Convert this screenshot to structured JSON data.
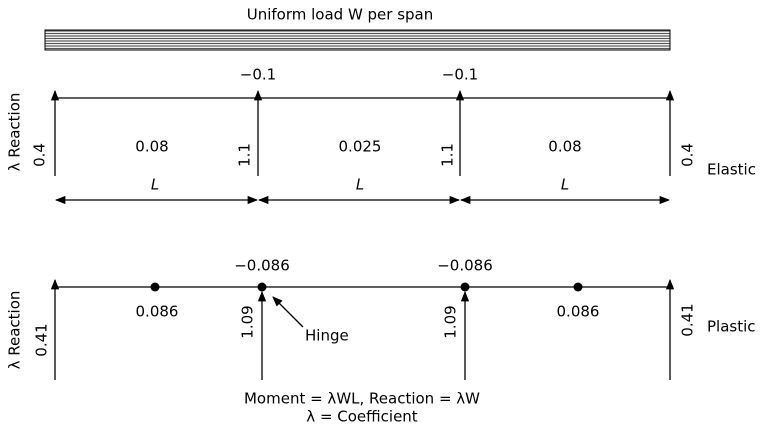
{
  "title": "Uniform load W per span",
  "elastic": {
    "label": "Elastic",
    "axis_label": "λ Reaction",
    "support_moments": [
      "−0.1",
      "−0.1"
    ],
    "span_moments": [
      "0.08",
      "0.025",
      "0.08"
    ],
    "span_labels": [
      "L",
      "L",
      "L"
    ],
    "reactions": [
      "0.4",
      "1.1",
      "1.1",
      "0.4"
    ]
  },
  "plastic": {
    "label": "Plastic",
    "axis_label": "λ Reaction",
    "support_moments": [
      "−0.086",
      "−0.086"
    ],
    "span_moments": [
      "0.086",
      "0.086"
    ],
    "reactions": [
      "0.41",
      "1.09",
      "1.09",
      "0.41"
    ],
    "hinge_label": "Hinge"
  },
  "legend": [
    "Moment = λWL, Reaction = λW",
    "λ = Coefficient"
  ]
}
